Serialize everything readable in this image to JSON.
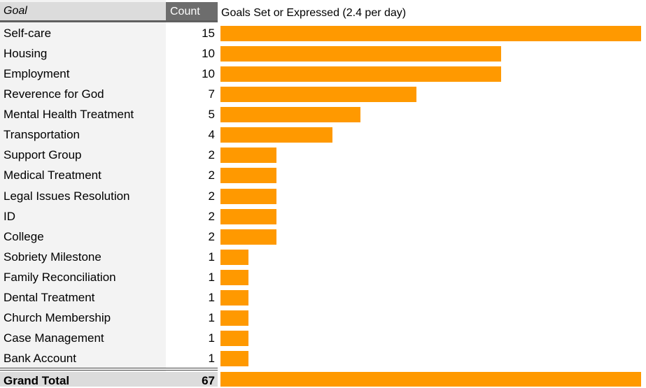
{
  "header": {
    "goal_label": "Goal",
    "count_label": "Count"
  },
  "chart_data": {
    "type": "bar",
    "title": "Goals Set or Expressed (2.4 per day)",
    "categories": [
      "Self-care",
      "Housing",
      "Employment",
      "Reverence for God",
      "Mental Health Treatment",
      "Transportation",
      "Support Group",
      "Medical Treatment",
      "Legal Issues Resolution",
      "ID",
      "College",
      "Sobriety Milestone",
      "Family Reconciliation",
      "Dental Treatment",
      "Church Membership",
      "Case Management",
      "Bank Account"
    ],
    "values": [
      15,
      10,
      10,
      7,
      5,
      4,
      2,
      2,
      2,
      2,
      2,
      1,
      1,
      1,
      1,
      1,
      1
    ],
    "xlim": [
      0,
      15
    ],
    "grid": false,
    "colors": {
      "bar": "#ff9900"
    }
  },
  "total": {
    "label": "Grand Total",
    "value": 67
  }
}
